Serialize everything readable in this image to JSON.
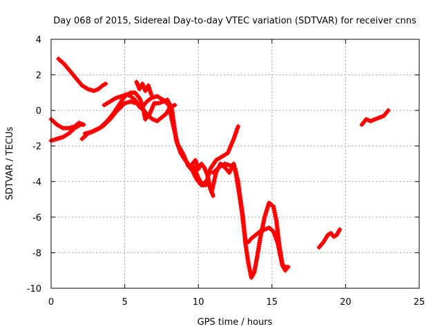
{
  "chart_data": {
    "type": "scatter",
    "title": "Day 068 of 2015, Sidereal Day-to-day VTEC variation (SDTVAR) for receiver cnns",
    "xlabel": "GPS time / hours",
    "ylabel": "SDTVAR / TECUs",
    "xlim": [
      0,
      25
    ],
    "ylim": [
      -10,
      4
    ],
    "xticks": [
      0,
      5,
      10,
      15,
      20,
      25
    ],
    "yticks": [
      -10,
      -8,
      -6,
      -4,
      -2,
      0,
      2,
      4
    ],
    "grid": true,
    "marker": "+",
    "color": "#ff0000",
    "segments": [
      {
        "x": [
          0.0,
          0.4,
          0.8,
          1.2,
          1.6,
          2.0,
          2.2
        ],
        "y": [
          -1.7,
          -1.6,
          -1.5,
          -1.3,
          -1.0,
          -0.8,
          -0.8
        ]
      },
      {
        "x": [
          0.0,
          0.4,
          0.8,
          1.2,
          1.6,
          1.9,
          2.2
        ],
        "y": [
          -0.5,
          -0.8,
          -1.0,
          -1.0,
          -0.9,
          -0.7,
          -0.8
        ]
      },
      {
        "x": [
          0.5,
          0.9,
          1.3,
          1.7,
          2.1,
          2.5,
          2.9,
          3.2,
          3.5,
          3.7
        ],
        "y": [
          2.9,
          2.6,
          2.2,
          1.8,
          1.4,
          1.2,
          1.1,
          1.2,
          1.4,
          1.5
        ]
      },
      {
        "x": [
          2.1,
          2.5,
          3.0,
          3.5,
          4.0,
          4.5,
          5.0,
          5.4,
          5.8,
          6.2,
          6.5,
          6.8,
          7.2,
          7.6,
          8.0,
          8.3,
          8.6,
          9.0,
          9.3,
          9.6,
          9.9,
          10.2,
          10.5,
          10.8,
          11.2,
          11.6,
          12.0,
          12.4,
          12.7
        ],
        "y": [
          -1.6,
          -1.3,
          -1.1,
          -0.9,
          -0.5,
          0.0,
          0.4,
          0.5,
          0.4,
          0.2,
          0.5,
          0.7,
          0.8,
          0.6,
          0.3,
          -0.9,
          -1.9,
          -2.5,
          -3.1,
          -3.4,
          -3.9,
          -4.2,
          -4.2,
          -3.3,
          -2.8,
          -2.6,
          -2.4,
          -1.6,
          -0.9
        ]
      },
      {
        "x": [
          2.3,
          2.8,
          3.3,
          3.8,
          4.2,
          4.6,
          5.0,
          5.4,
          5.7,
          6.0,
          6.2,
          6.4,
          6.7,
          7.0,
          7.3,
          7.6,
          7.9,
          8.2,
          8.5,
          8.8,
          9.1,
          9.4,
          9.7,
          10.0,
          10.3,
          10.6,
          10.9,
          11.2,
          11.5,
          11.8,
          12.1,
          12.4,
          12.7,
          13.0,
          13.2,
          13.4,
          13.6,
          13.9,
          14.2,
          14.5,
          14.8,
          15.1,
          15.4,
          15.7,
          15.9,
          16.1
        ],
        "y": [
          -1.3,
          -1.2,
          -1.0,
          -0.6,
          -0.2,
          0.3,
          0.8,
          1.0,
          1.0,
          0.7,
          0.3,
          -0.5,
          -0.2,
          0.4,
          0.4,
          0.5,
          0.6,
          0.1,
          -1.7,
          -2.4,
          -2.8,
          -3.1,
          -3.2,
          -3.8,
          -4.2,
          -3.9,
          -4.6,
          -3.5,
          -3.0,
          -3.2,
          -3.5,
          -3.0,
          -4.0,
          -6.0,
          -7.3,
          -7.4,
          -7.2,
          -7.0,
          -6.8,
          -6.7,
          -6.6,
          -6.8,
          -7.5,
          -8.7,
          -9.0,
          -8.8
        ]
      },
      {
        "x": [
          5.8,
          6.0,
          6.2,
          6.4,
          6.6,
          6.8
        ],
        "y": [
          1.6,
          1.2,
          1.5,
          1.1,
          1.4,
          0.9
        ]
      },
      {
        "x": [
          9.5,
          9.8,
          10.0,
          10.2,
          10.4,
          10.6,
          10.8,
          11.0
        ],
        "y": [
          -3.1,
          -2.8,
          -3.3,
          -3.0,
          -3.2,
          -3.6,
          -4.3,
          -4.8
        ]
      },
      {
        "x": [
          11.0,
          11.4,
          11.8,
          12.2,
          12.5,
          12.8,
          13.0,
          13.2,
          13.4,
          13.6,
          13.8,
          14.0,
          14.2,
          14.5,
          14.8,
          15.1,
          15.3,
          15.5,
          15.7,
          15.9,
          16.0
        ],
        "y": [
          -3.5,
          -3.2,
          -3.0,
          -3.1,
          -3.3,
          -4.8,
          -5.8,
          -7.5,
          -8.6,
          -9.4,
          -9.1,
          -8.2,
          -7.2,
          -6.0,
          -5.2,
          -5.4,
          -6.2,
          -7.6,
          -8.6,
          -8.9,
          -8.8
        ]
      },
      {
        "x": [
          3.6,
          4.0,
          4.4,
          4.8,
          5.1,
          5.4,
          5.7,
          6.0,
          6.3,
          6.6,
          6.9,
          7.2,
          7.5,
          7.8,
          8.1,
          8.4
        ],
        "y": [
          0.3,
          0.5,
          0.7,
          0.8,
          0.9,
          0.8,
          0.6,
          0.2,
          0.0,
          -0.3,
          -0.5,
          -0.6,
          -0.4,
          -0.2,
          0.2,
          0.3
        ]
      },
      {
        "x": [
          18.2,
          18.5,
          18.8,
          19.0,
          19.2,
          19.4,
          19.6
        ],
        "y": [
          -7.7,
          -7.4,
          -7.0,
          -6.9,
          -7.1,
          -7.0,
          -6.7
        ]
      },
      {
        "x": [
          21.1,
          21.4,
          21.7,
          22.0,
          22.3,
          22.6,
          22.9
        ],
        "y": [
          -0.8,
          -0.5,
          -0.6,
          -0.5,
          -0.4,
          -0.3,
          0.0
        ]
      }
    ]
  }
}
